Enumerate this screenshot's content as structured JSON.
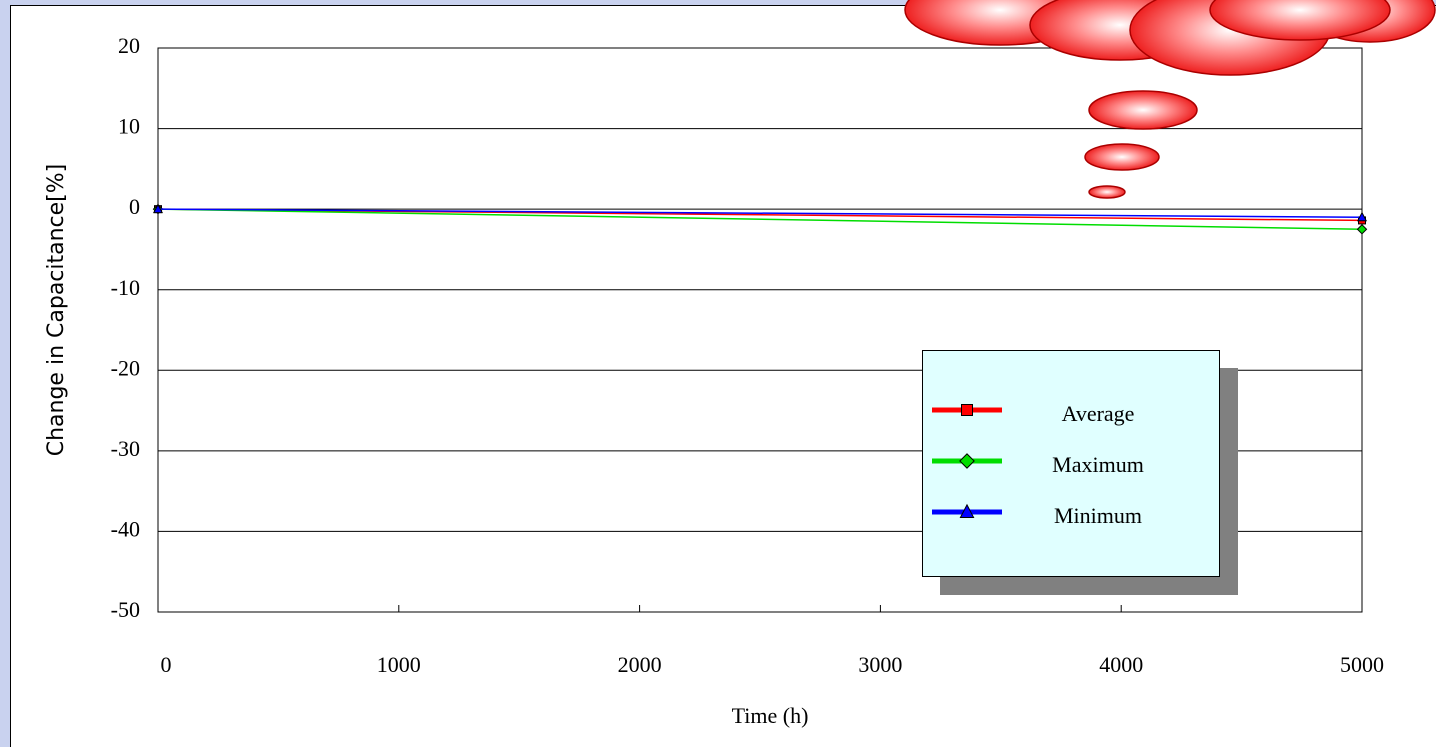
{
  "chart_data": {
    "type": "line",
    "xlabel": "Time (h)",
    "ylabel": "Change in Capacitance[%]",
    "x": [
      0,
      5000
    ],
    "series": [
      {
        "name": "Average",
        "color": "#ff0000",
        "marker": "square",
        "values": [
          0,
          -1.4
        ]
      },
      {
        "name": "Maximum",
        "color": "#00dd00",
        "marker": "diamond",
        "values": [
          0,
          -2.5
        ]
      },
      {
        "name": "Minimum",
        "color": "#0000ff",
        "marker": "triangle",
        "values": [
          0,
          -1.0
        ]
      }
    ],
    "xlim": [
      0,
      5000
    ],
    "xticks": [
      0,
      1000,
      2000,
      3000,
      4000,
      5000
    ],
    "ylim": [
      -50,
      20
    ],
    "yticks": [
      -50,
      -40,
      -30,
      -20,
      -10,
      0,
      10,
      20
    ],
    "grid": true,
    "legend": "lower right"
  }
}
